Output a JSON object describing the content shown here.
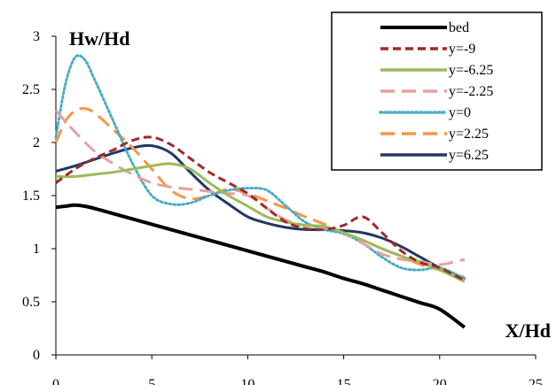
{
  "chart_data": {
    "type": "line",
    "title": "",
    "xlabel": "X/Hd",
    "ylabel": "Hw/Hd",
    "xlim": [
      0,
      25
    ],
    "ylim": [
      0,
      3
    ],
    "x_ticks": [
      "0",
      "5",
      "10",
      "15",
      "20",
      "25"
    ],
    "y_ticks": [
      "0",
      "0.5",
      "1",
      "1.5",
      "2",
      "2.5",
      "3"
    ],
    "grid": false,
    "legend": "top-right",
    "series": [
      {
        "name": "bed",
        "color": "#000000",
        "dash": "solid",
        "width": 4,
        "x": [
          0,
          0.5,
          1,
          1.5,
          2,
          3,
          4,
          5,
          6,
          7,
          8,
          9,
          10,
          11,
          12,
          13,
          14,
          15,
          16,
          17,
          18,
          19,
          20,
          21.3
        ],
        "y": [
          1.39,
          1.4,
          1.41,
          1.4,
          1.38,
          1.33,
          1.28,
          1.23,
          1.18,
          1.13,
          1.08,
          1.03,
          0.98,
          0.93,
          0.88,
          0.83,
          0.78,
          0.72,
          0.67,
          0.61,
          0.55,
          0.49,
          0.43,
          0.26
        ]
      },
      {
        "name": "y=-9",
        "color": "#a0292a",
        "dash": "short-dash",
        "width": 3,
        "x": [
          0,
          1,
          2,
          3,
          4,
          5,
          6,
          7,
          8,
          9,
          10,
          11,
          12,
          13,
          14,
          15,
          16,
          17,
          18,
          19,
          20,
          21.3
        ],
        "y": [
          1.62,
          1.75,
          1.85,
          1.93,
          2.02,
          2.05,
          1.98,
          1.85,
          1.72,
          1.62,
          1.52,
          1.38,
          1.25,
          1.19,
          1.18,
          1.22,
          1.3,
          1.15,
          0.98,
          0.87,
          0.82,
          0.7
        ]
      },
      {
        "name": "y=-6.25",
        "color": "#9bbb59",
        "dash": "solid",
        "width": 3,
        "x": [
          0,
          1,
          2,
          3,
          4,
          5,
          6,
          7,
          8,
          9,
          10,
          11,
          12,
          13,
          14,
          15,
          16,
          17,
          18,
          19,
          20,
          21.3
        ],
        "y": [
          1.68,
          1.68,
          1.7,
          1.72,
          1.75,
          1.78,
          1.8,
          1.75,
          1.62,
          1.5,
          1.4,
          1.3,
          1.25,
          1.22,
          1.21,
          1.15,
          1.08,
          1.0,
          0.93,
          0.87,
          0.8,
          0.69
        ]
      },
      {
        "name": "y=-2.25",
        "color": "#e6a0a0",
        "dash": "long-dash",
        "width": 3,
        "x": [
          0,
          1,
          2,
          3,
          4,
          5,
          6,
          7,
          8,
          9,
          10,
          11,
          12,
          13,
          14,
          15,
          16,
          17,
          18,
          19,
          20,
          21.3
        ],
        "y": [
          2.3,
          2.1,
          1.92,
          1.8,
          1.7,
          1.62,
          1.58,
          1.56,
          1.54,
          1.52,
          1.5,
          1.38,
          1.27,
          1.22,
          1.2,
          1.15,
          1.05,
          0.95,
          0.9,
          0.88,
          0.85,
          0.9
        ]
      },
      {
        "name": "y=0",
        "color": "#4bacc6",
        "dash": "dotted",
        "width": 3,
        "x": [
          0,
          0.5,
          1,
          1.5,
          2,
          3,
          4,
          5,
          6,
          7,
          8,
          9,
          10,
          11,
          12,
          13,
          14,
          15,
          16,
          17,
          18,
          19,
          20,
          21.3
        ],
        "y": [
          2.05,
          2.55,
          2.8,
          2.78,
          2.6,
          2.2,
          1.8,
          1.5,
          1.42,
          1.43,
          1.5,
          1.55,
          1.57,
          1.55,
          1.4,
          1.25,
          1.18,
          1.14,
          1.05,
          0.92,
          0.82,
          0.8,
          0.82,
          0.72
        ]
      },
      {
        "name": "y=2.25",
        "color": "#f79646",
        "dash": "long-dash",
        "width": 3,
        "x": [
          0,
          0.5,
          1,
          1.5,
          2,
          3,
          4,
          5,
          6,
          7,
          8,
          9,
          10,
          11,
          12,
          13,
          14,
          15,
          16,
          17,
          18,
          19,
          20,
          21.3
        ],
        "y": [
          2.0,
          2.2,
          2.3,
          2.32,
          2.28,
          2.12,
          1.95,
          1.75,
          1.55,
          1.47,
          1.5,
          1.56,
          1.52,
          1.45,
          1.38,
          1.3,
          1.23,
          1.15,
          1.08,
          1.0,
          0.93,
          0.85,
          0.8,
          0.73
        ]
      },
      {
        "name": "y=6.25",
        "color": "#1f3864",
        "dash": "solid",
        "width": 3,
        "x": [
          0,
          1,
          2,
          3,
          4,
          5,
          6,
          7,
          8,
          9,
          10,
          11,
          12,
          13,
          14,
          15,
          16,
          17,
          18,
          19,
          20,
          21.3
        ],
        "y": [
          1.73,
          1.78,
          1.84,
          1.9,
          1.95,
          1.97,
          1.9,
          1.72,
          1.55,
          1.42,
          1.3,
          1.24,
          1.2,
          1.18,
          1.18,
          1.17,
          1.15,
          1.1,
          1.02,
          0.92,
          0.82,
          0.72
        ]
      }
    ]
  }
}
